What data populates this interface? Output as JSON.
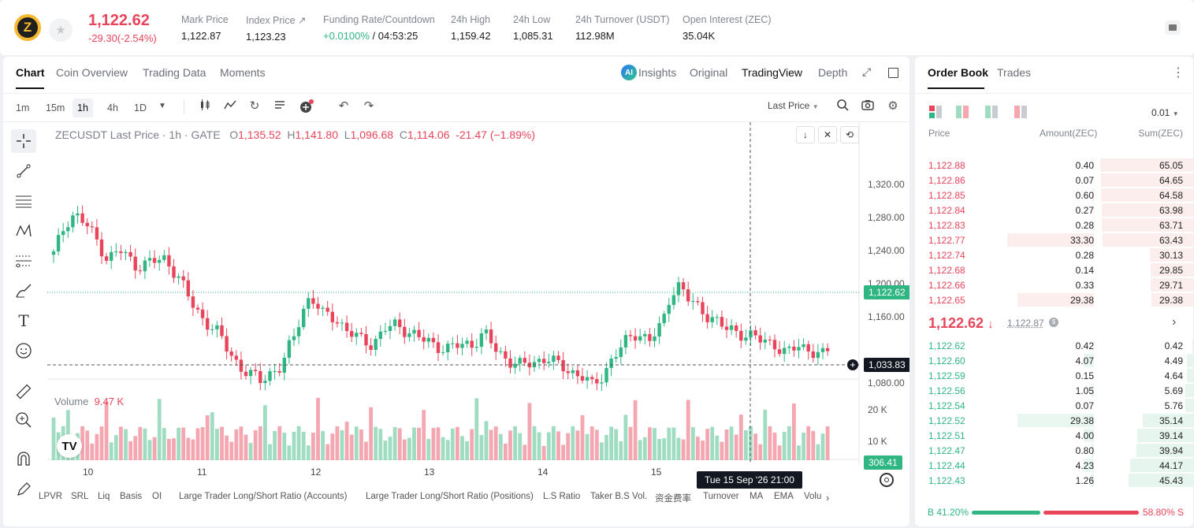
{
  "ticker": {
    "coin_icon": "zcash-logo",
    "coin_letter": "Z",
    "last_price": "1,122.62",
    "change": "-29.30(-2.54%)",
    "stats": [
      {
        "label": "Mark Price",
        "value": "1,122.87"
      },
      {
        "label": "Index Price ↗",
        "value": "1,123.23"
      },
      {
        "label": "Funding Rate/Countdown",
        "value_green": "+0.0100%",
        "value": " / 04:53:25"
      },
      {
        "label": "24h High",
        "value": "1,159.42"
      },
      {
        "label": "24h Low",
        "value": "1,085.31"
      },
      {
        "label": "24h Turnover (USDT)",
        "value": "112.98M"
      },
      {
        "label": "Open Interest (ZEC)",
        "value": "35.04K"
      }
    ]
  },
  "chart_panel": {
    "tabs": [
      "Chart",
      "Coin Overview",
      "Trading Data",
      "Moments"
    ],
    "ai_badge": "AI",
    "views": [
      "Insights",
      "Original",
      "TradingView",
      "Depth"
    ],
    "timeframes": [
      "1m",
      "15m",
      "1h",
      "4h",
      "1D"
    ],
    "price_source": "Last Price",
    "legend": {
      "symbol": "ZECUSDT Last Price · 1h · GATE",
      "o_key": "O",
      "o": "1,135.52",
      "h_key": "H",
      "h": "1,141.80",
      "l_key": "L",
      "l": "1,096.68",
      "c_key": "C",
      "c": "1,114.06",
      "chg": "-21.47 (−1.89%)"
    },
    "volume_legend": {
      "label": "Volume",
      "value": "9.47 K"
    },
    "price_axis": [
      "1,320.00",
      "1,280.00",
      "1,240.00",
      "1,200.00",
      "1,160.00",
      "1,080.00"
    ],
    "volume_axis": [
      "20 K",
      "10 K"
    ],
    "time_axis": [
      "10",
      "11",
      "12",
      "13",
      "14",
      "15"
    ],
    "current_price_tag": "1,122.62",
    "crosshair_price_tag": "1,033.83",
    "volume_tag": "306.41",
    "crosshair_time": "Tue 15 Sep '26   21:00",
    "tv_logo": "TV",
    "indicators": [
      "LPVR",
      "SRL",
      "Liq",
      "Basis",
      "OI",
      "Large Trader Long/Short Ratio (Accounts)",
      "Large Trader Long/Short Ratio (Positions)",
      "L.S Ratio",
      "Taker B.S Vol.",
      "资金费率",
      "Turnover",
      "MA",
      "EMA",
      "Volu"
    ],
    "colors": {
      "up": "#2fb683",
      "down": "#e8455b",
      "up_vol": "#9fdcc1",
      "down_vol": "#f4a6b1"
    }
  },
  "order_book": {
    "tabs": [
      "Order Book",
      "Trades"
    ],
    "precision": "0.01",
    "headers": [
      "Price",
      "Amount(ZEC)",
      "Sum(ZEC)"
    ],
    "asks": [
      {
        "price": "1,122.88",
        "amount": "0.40",
        "sum": "65.05"
      },
      {
        "price": "1,122.86",
        "amount": "0.07",
        "sum": "64.65"
      },
      {
        "price": "1,122.85",
        "amount": "0.60",
        "sum": "64.58"
      },
      {
        "price": "1,122.84",
        "amount": "0.27",
        "sum": "63.98"
      },
      {
        "price": "1,122.83",
        "amount": "0.28",
        "sum": "63.71"
      },
      {
        "price": "1,122.77",
        "amount": "33.30",
        "sum": "63.43"
      },
      {
        "price": "1,122.74",
        "amount": "0.28",
        "sum": "30.13"
      },
      {
        "price": "1,122.68",
        "amount": "0.14",
        "sum": "29.85"
      },
      {
        "price": "1,122.66",
        "amount": "0.33",
        "sum": "29.71"
      },
      {
        "price": "1,122.65",
        "amount": "29.38",
        "sum": "29.38"
      }
    ],
    "last_price": "1,122.62",
    "last_arrow": "↓",
    "mark_price": "1,122.87",
    "mark_badge": "$",
    "bids": [
      {
        "price": "1,122.62",
        "amount": "0.42",
        "sum": "0.42"
      },
      {
        "price": "1,122.60",
        "amount": "4.07",
        "sum": "4.49"
      },
      {
        "price": "1,122.59",
        "amount": "0.15",
        "sum": "4.64"
      },
      {
        "price": "1,122.56",
        "amount": "1.05",
        "sum": "5.69"
      },
      {
        "price": "1,122.54",
        "amount": "0.07",
        "sum": "5.76"
      },
      {
        "price": "1,122.52",
        "amount": "29.38",
        "sum": "35.14"
      },
      {
        "price": "1,122.51",
        "amount": "4.00",
        "sum": "39.14"
      },
      {
        "price": "1,122.47",
        "amount": "0.80",
        "sum": "39.94"
      },
      {
        "price": "1,122.44",
        "amount": "4.23",
        "sum": "44.17"
      },
      {
        "price": "1,122.43",
        "amount": "1.26",
        "sum": "45.43"
      }
    ],
    "buy_ratio": "B 41.20%",
    "sell_ratio": "58.80% S",
    "buy_pct": 41.2
  }
}
